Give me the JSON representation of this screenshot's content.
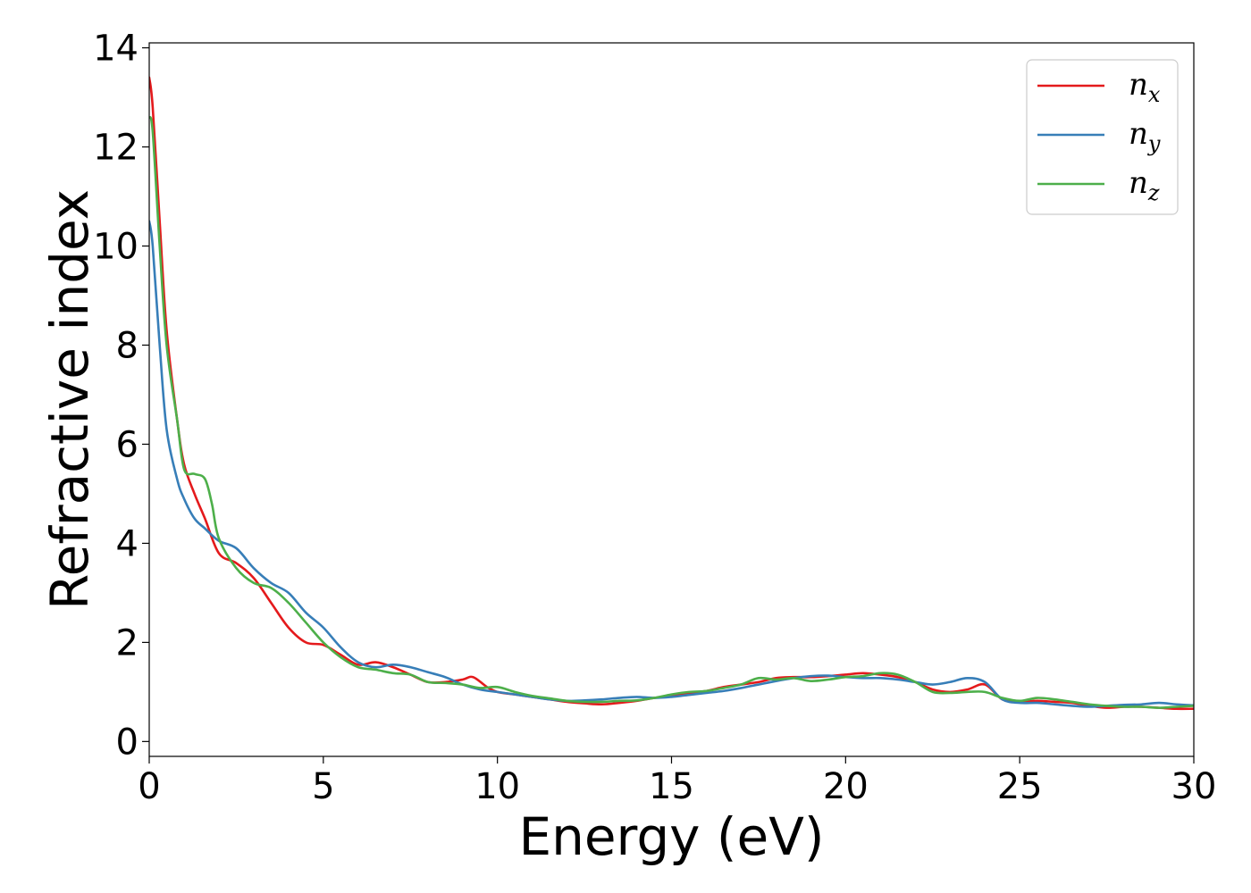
{
  "chart_data": {
    "type": "line",
    "xlabel": "Energy (eV)",
    "ylabel": "Refractive index",
    "xlim": [
      0,
      30
    ],
    "ylim": [
      -0.3,
      14.1
    ],
    "xticks": [
      0,
      5,
      10,
      15,
      20,
      25,
      30
    ],
    "yticks": [
      0,
      2,
      4,
      6,
      8,
      10,
      12,
      14
    ],
    "grid": false,
    "legend_position": "top-right",
    "series": [
      {
        "name": "n_x",
        "label_base": "n",
        "label_sub": "x",
        "color": "#e41a1c",
        "x": [
          0,
          0.1,
          0.3,
          0.5,
          0.8,
          1.0,
          1.3,
          1.6,
          2.0,
          2.5,
          3.0,
          3.5,
          4.0,
          4.5,
          5.0,
          5.5,
          6.0,
          6.5,
          7.0,
          7.5,
          8.0,
          8.5,
          9.0,
          9.3,
          9.7,
          10.0,
          10.5,
          11.0,
          11.5,
          12.0,
          12.5,
          13.0,
          13.5,
          14.0,
          14.5,
          15.0,
          15.5,
          16.0,
          16.5,
          17.0,
          17.5,
          18.0,
          18.5,
          19.0,
          19.5,
          20.0,
          20.5,
          21.0,
          21.5,
          22.0,
          22.5,
          23.0,
          23.5,
          24.0,
          24.5,
          25.0,
          25.5,
          26.0,
          26.5,
          27.0,
          27.5,
          28.0,
          28.5,
          29.0,
          29.5,
          30.0
        ],
        "y": [
          13.4,
          12.8,
          10.5,
          8.3,
          6.5,
          5.6,
          5.0,
          4.5,
          3.8,
          3.6,
          3.3,
          2.8,
          2.3,
          2.0,
          1.95,
          1.75,
          1.55,
          1.6,
          1.5,
          1.35,
          1.2,
          1.2,
          1.25,
          1.3,
          1.1,
          1.0,
          0.95,
          0.9,
          0.85,
          0.8,
          0.77,
          0.75,
          0.78,
          0.82,
          0.88,
          0.92,
          0.98,
          1.02,
          1.1,
          1.15,
          1.2,
          1.28,
          1.3,
          1.3,
          1.32,
          1.35,
          1.38,
          1.35,
          1.3,
          1.2,
          1.05,
          1.0,
          1.05,
          1.15,
          0.85,
          0.8,
          0.82,
          0.8,
          0.78,
          0.72,
          0.68,
          0.7,
          0.7,
          0.68,
          0.66,
          0.66
        ]
      },
      {
        "name": "n_y",
        "label_base": "n",
        "label_sub": "y",
        "color": "#377eb8",
        "x": [
          0,
          0.1,
          0.3,
          0.5,
          0.8,
          1.0,
          1.3,
          1.6,
          2.0,
          2.5,
          3.0,
          3.5,
          4.0,
          4.5,
          5.0,
          5.5,
          6.0,
          6.5,
          7.0,
          7.5,
          8.0,
          8.5,
          9.0,
          9.5,
          10.0,
          10.5,
          11.0,
          11.5,
          12.0,
          12.5,
          13.0,
          13.5,
          14.0,
          14.5,
          15.0,
          15.5,
          16.0,
          16.5,
          17.0,
          17.5,
          18.0,
          18.5,
          19.0,
          19.5,
          20.0,
          20.5,
          21.0,
          21.5,
          22.0,
          22.5,
          23.0,
          23.5,
          24.0,
          24.5,
          25.0,
          25.5,
          26.0,
          26.5,
          27.0,
          27.5,
          28.0,
          28.5,
          29.0,
          29.5,
          30.0
        ],
        "y": [
          10.5,
          10.0,
          8.0,
          6.3,
          5.3,
          4.9,
          4.5,
          4.3,
          4.05,
          3.9,
          3.5,
          3.2,
          3.0,
          2.6,
          2.3,
          1.9,
          1.6,
          1.5,
          1.55,
          1.5,
          1.4,
          1.3,
          1.15,
          1.05,
          1.0,
          0.95,
          0.9,
          0.85,
          0.82,
          0.83,
          0.85,
          0.88,
          0.9,
          0.88,
          0.9,
          0.94,
          0.98,
          1.02,
          1.08,
          1.15,
          1.22,
          1.28,
          1.32,
          1.33,
          1.3,
          1.28,
          1.28,
          1.25,
          1.2,
          1.15,
          1.2,
          1.28,
          1.2,
          0.85,
          0.78,
          0.78,
          0.75,
          0.72,
          0.7,
          0.72,
          0.74,
          0.75,
          0.78,
          0.75,
          0.73
        ]
      },
      {
        "name": "n_z",
        "label_base": "n",
        "label_sub": "z",
        "color": "#4daf4a",
        "x": [
          0,
          0.1,
          0.3,
          0.5,
          0.8,
          1.0,
          1.3,
          1.6,
          1.8,
          2.0,
          2.5,
          3.0,
          3.5,
          4.0,
          4.5,
          5.0,
          5.5,
          6.0,
          6.5,
          7.0,
          7.5,
          8.0,
          8.5,
          9.0,
          9.5,
          10.0,
          10.5,
          11.0,
          11.5,
          12.0,
          12.5,
          13.0,
          13.5,
          14.0,
          14.5,
          15.0,
          15.5,
          16.0,
          16.5,
          17.0,
          17.5,
          18.0,
          18.5,
          19.0,
          19.5,
          20.0,
          20.5,
          21.0,
          21.5,
          22.0,
          22.5,
          23.0,
          23.5,
          24.0,
          24.5,
          25.0,
          25.5,
          26.0,
          26.5,
          27.0,
          27.5,
          28.0,
          28.5,
          29.0,
          29.5,
          30.0
        ],
        "y": [
          12.6,
          12.3,
          10.0,
          8.0,
          6.5,
          5.5,
          5.4,
          5.3,
          4.8,
          4.1,
          3.5,
          3.2,
          3.1,
          2.8,
          2.4,
          2.0,
          1.7,
          1.5,
          1.45,
          1.38,
          1.35,
          1.2,
          1.18,
          1.15,
          1.08,
          1.1,
          1.0,
          0.92,
          0.87,
          0.82,
          0.8,
          0.8,
          0.82,
          0.83,
          0.88,
          0.95,
          1.0,
          1.02,
          1.08,
          1.15,
          1.28,
          1.25,
          1.28,
          1.22,
          1.25,
          1.3,
          1.32,
          1.38,
          1.35,
          1.2,
          1.0,
          0.98,
          1.0,
          1.0,
          0.88,
          0.82,
          0.88,
          0.85,
          0.8,
          0.75,
          0.72,
          0.7,
          0.7,
          0.68,
          0.7,
          0.72
        ]
      }
    ]
  }
}
